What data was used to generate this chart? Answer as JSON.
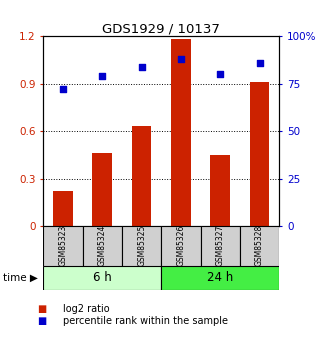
{
  "title": "GDS1929 / 10137",
  "categories": [
    "GSM85323",
    "GSM85324",
    "GSM85325",
    "GSM85326",
    "GSM85327",
    "GSM85328"
  ],
  "log2_ratio": [
    0.22,
    0.46,
    0.63,
    1.18,
    0.45,
    0.91
  ],
  "percentile_rank_pct": [
    72,
    79,
    84,
    88,
    80,
    86
  ],
  "bar_color": "#cc2200",
  "dot_color": "#0000cc",
  "left_ylim": [
    0,
    1.2
  ],
  "right_ylim": [
    0,
    100
  ],
  "left_yticks": [
    0,
    0.3,
    0.6,
    0.9,
    1.2
  ],
  "right_yticks": [
    0,
    25,
    50,
    75,
    100
  ],
  "left_yticklabels": [
    "0",
    "0.3",
    "0.6",
    "0.9",
    "1.2"
  ],
  "right_yticklabels": [
    "0",
    "25",
    "50",
    "75",
    "100%"
  ],
  "group1_label": "6 h",
  "group2_label": "24 h",
  "group1_indices": [
    0,
    1,
    2
  ],
  "group2_indices": [
    3,
    4,
    5
  ],
  "group1_color": "#ccffcc",
  "group2_color": "#44ee44",
  "label_log2": "log2 ratio",
  "label_pct": "percentile rank within the sample",
  "time_label": "time",
  "bg_color": "#ffffff",
  "bar_width": 0.5,
  "sample_box_color": "#d0d0d0",
  "dot_size": 22
}
